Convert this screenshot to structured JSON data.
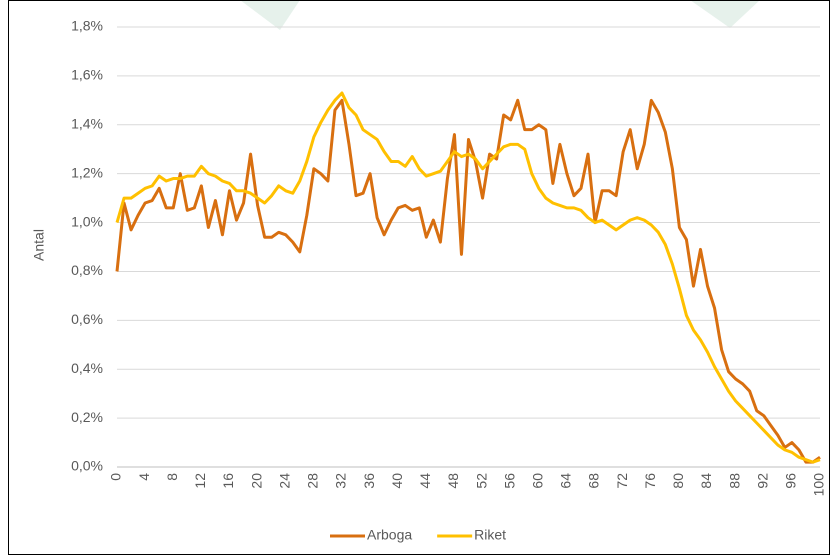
{
  "chart_data": {
    "type": "line",
    "y_label": "Antal",
    "x": [
      0,
      1,
      2,
      3,
      4,
      5,
      6,
      7,
      8,
      9,
      10,
      11,
      12,
      13,
      14,
      15,
      16,
      17,
      18,
      19,
      20,
      21,
      22,
      23,
      24,
      25,
      26,
      27,
      28,
      29,
      30,
      31,
      32,
      33,
      34,
      35,
      36,
      37,
      38,
      39,
      40,
      41,
      42,
      43,
      44,
      45,
      46,
      47,
      48,
      49,
      50,
      51,
      52,
      53,
      54,
      55,
      56,
      57,
      58,
      59,
      60,
      61,
      62,
      63,
      64,
      65,
      66,
      67,
      68,
      69,
      70,
      71,
      72,
      73,
      74,
      75,
      76,
      77,
      78,
      79,
      80,
      81,
      82,
      83,
      84,
      85,
      86,
      87,
      88,
      89,
      90,
      91,
      92,
      93,
      94,
      95,
      96,
      97,
      98,
      99,
      100
    ],
    "series": [
      {
        "name": "Arboga",
        "color": "#d86f10",
        "values": [
          0.8,
          1.08,
          0.97,
          1.03,
          1.08,
          1.09,
          1.14,
          1.06,
          1.06,
          1.2,
          1.05,
          1.06,
          1.15,
          0.98,
          1.09,
          0.95,
          1.13,
          1.01,
          1.08,
          1.28,
          1.07,
          0.94,
          0.94,
          0.96,
          0.95,
          0.92,
          0.88,
          1.03,
          1.22,
          1.2,
          1.17,
          1.46,
          1.5,
          1.32,
          1.11,
          1.12,
          1.2,
          1.02,
          0.95,
          1.01,
          1.06,
          1.07,
          1.05,
          1.06,
          0.94,
          1.01,
          0.92,
          1.18,
          1.36,
          0.87,
          1.34,
          1.25,
          1.1,
          1.28,
          1.26,
          1.44,
          1.42,
          1.5,
          1.38,
          1.38,
          1.4,
          1.38,
          1.16,
          1.32,
          1.2,
          1.11,
          1.14,
          1.28,
          1.0,
          1.13,
          1.13,
          1.11,
          1.29,
          1.38,
          1.22,
          1.32,
          1.5,
          1.45,
          1.37,
          1.22,
          0.98,
          0.93,
          0.74,
          0.89,
          0.74,
          0.65,
          0.48,
          0.39,
          0.36,
          0.34,
          0.31,
          0.23,
          0.21,
          0.17,
          0.13,
          0.08,
          0.1,
          0.07,
          0.02,
          0.02,
          0.04
        ]
      },
      {
        "name": "Riket",
        "color": "#ffc000",
        "values": [
          1.0,
          1.1,
          1.1,
          1.12,
          1.14,
          1.15,
          1.19,
          1.17,
          1.18,
          1.18,
          1.19,
          1.19,
          1.23,
          1.2,
          1.19,
          1.17,
          1.16,
          1.13,
          1.13,
          1.12,
          1.1,
          1.08,
          1.11,
          1.15,
          1.13,
          1.12,
          1.17,
          1.25,
          1.35,
          1.41,
          1.46,
          1.5,
          1.53,
          1.47,
          1.44,
          1.38,
          1.36,
          1.34,
          1.29,
          1.25,
          1.25,
          1.23,
          1.27,
          1.22,
          1.19,
          1.2,
          1.21,
          1.25,
          1.29,
          1.27,
          1.28,
          1.26,
          1.22,
          1.25,
          1.28,
          1.31,
          1.32,
          1.32,
          1.3,
          1.2,
          1.14,
          1.1,
          1.08,
          1.07,
          1.06,
          1.06,
          1.05,
          1.02,
          1.0,
          1.01,
          0.99,
          0.97,
          0.99,
          1.01,
          1.02,
          1.01,
          0.99,
          0.96,
          0.91,
          0.83,
          0.73,
          0.62,
          0.56,
          0.52,
          0.47,
          0.41,
          0.36,
          0.31,
          0.27,
          0.24,
          0.21,
          0.18,
          0.15,
          0.12,
          0.09,
          0.07,
          0.06,
          0.04,
          0.03,
          0.02,
          0.03
        ]
      }
    ],
    "xlim": [
      0,
      100
    ],
    "xticks": [
      0,
      4,
      8,
      12,
      16,
      20,
      24,
      28,
      32,
      36,
      40,
      44,
      48,
      52,
      56,
      60,
      64,
      68,
      72,
      76,
      80,
      84,
      88,
      92,
      96,
      100
    ],
    "ylim": [
      0,
      1.8
    ],
    "yticks": [
      {
        "value": 0,
        "label": "0,0%"
      },
      {
        "value": 0.2,
        "label": "0,2%"
      },
      {
        "value": 0.4,
        "label": "0,4%"
      },
      {
        "value": 0.6,
        "label": "0,6%"
      },
      {
        "value": 0.8,
        "label": "0,8%"
      },
      {
        "value": 1.0,
        "label": "1,0%"
      },
      {
        "value": 1.2,
        "label": "1,2%"
      },
      {
        "value": 1.4,
        "label": "1,4%"
      },
      {
        "value": 1.6,
        "label": "1,6%"
      },
      {
        "value": 1.8,
        "label": "1,8%"
      }
    ],
    "grid": true,
    "legend": "bottom"
  }
}
